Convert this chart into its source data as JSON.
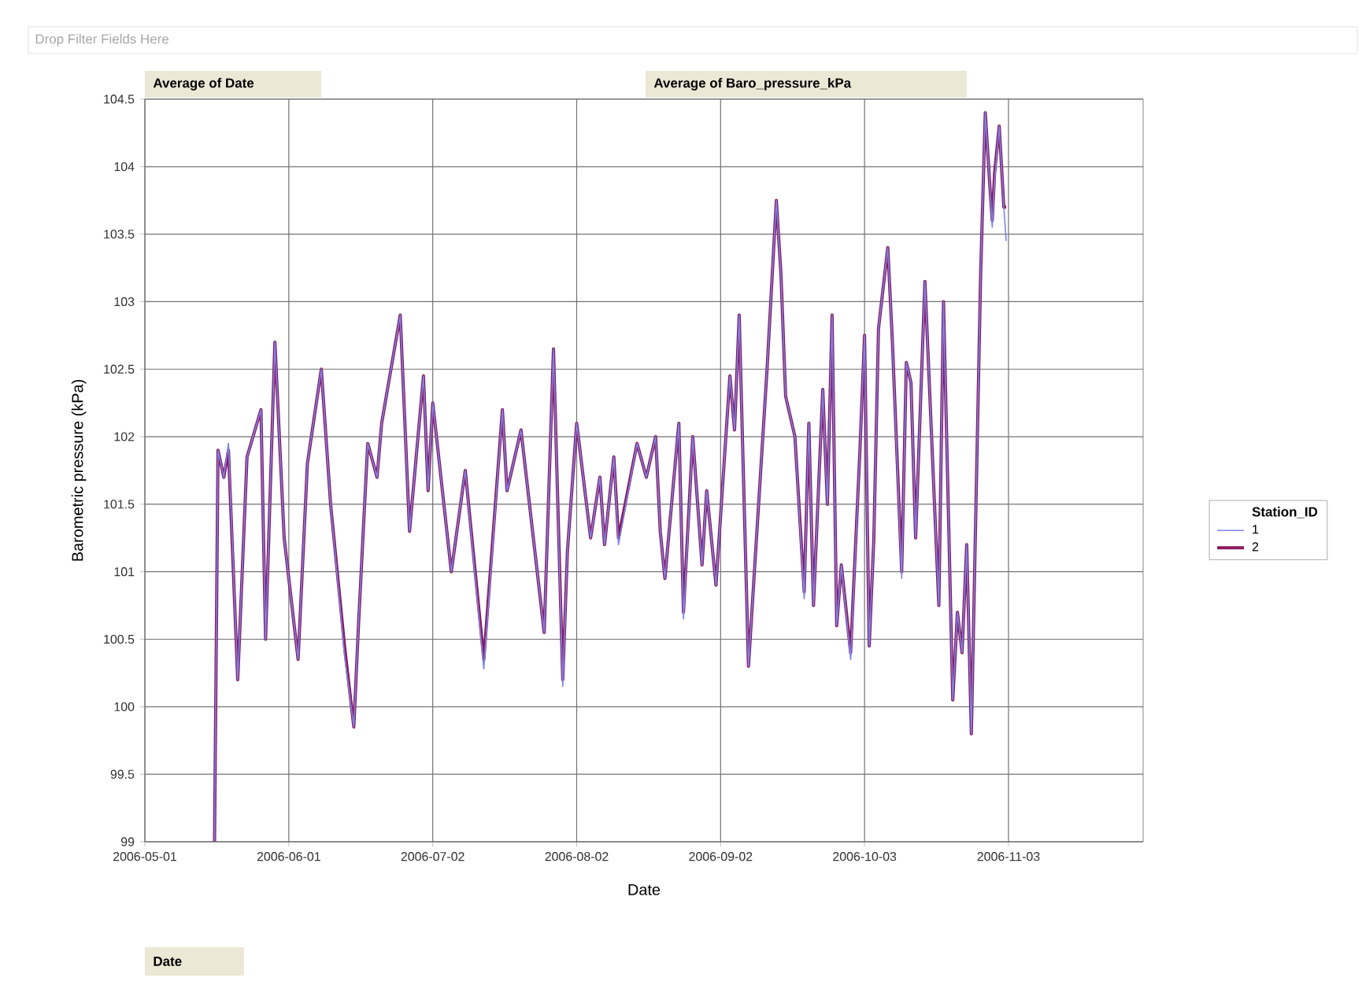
{
  "chart_data": {
    "type": "line",
    "xlabel": "Date",
    "ylabel": "Barometric pressure (kPa)",
    "legend_title": "Station_ID",
    "annotations": [
      "Drop Filter Fields Here",
      "Average of Date",
      "Average of Baro_pressure_kPa",
      "Date"
    ],
    "x": [
      "2006-05-16",
      "2006-05-16T18:00",
      "2006-05-18",
      "2006-05-19",
      "2006-05-21",
      "2006-05-23",
      "2006-05-26",
      "2006-05-27",
      "2006-05-29",
      "2006-05-31",
      "2006-06-03",
      "2006-06-05",
      "2006-06-08",
      "2006-06-10",
      "2006-06-13",
      "2006-06-15",
      "2006-06-16",
      "2006-06-18",
      "2006-06-20",
      "2006-06-21",
      "2006-06-25",
      "2006-06-27",
      "2006-06-30",
      "2006-07-01",
      "2006-07-02",
      "2006-07-06",
      "2006-07-09",
      "2006-07-13",
      "2006-07-17",
      "2006-07-18",
      "2006-07-21",
      "2006-07-26",
      "2006-07-28",
      "2006-07-30",
      "2006-07-31",
      "2006-08-02",
      "2006-08-05",
      "2006-08-07",
      "2006-08-08",
      "2006-08-10",
      "2006-08-11",
      "2006-08-15",
      "2006-08-17",
      "2006-08-19",
      "2006-08-20",
      "2006-08-21",
      "2006-08-24",
      "2006-08-25",
      "2006-08-27",
      "2006-08-29",
      "2006-08-30",
      "2006-09-01",
      "2006-09-04",
      "2006-09-05",
      "2006-09-06",
      "2006-09-08",
      "2006-09-12",
      "2006-09-14",
      "2006-09-15",
      "2006-09-16",
      "2006-09-18",
      "2006-09-20",
      "2006-09-21",
      "2006-09-22",
      "2006-09-24",
      "2006-09-25",
      "2006-09-26",
      "2006-09-27",
      "2006-09-28",
      "2006-09-30",
      "2006-10-02",
      "2006-10-03",
      "2006-10-04",
      "2006-10-05",
      "2006-10-06",
      "2006-10-08",
      "2006-10-09",
      "2006-10-11",
      "2006-10-12",
      "2006-10-13",
      "2006-10-14",
      "2006-10-16",
      "2006-10-19",
      "2006-10-20",
      "2006-10-22",
      "2006-10-23",
      "2006-10-24",
      "2006-10-25",
      "2006-10-26",
      "2006-10-28",
      "2006-10-29",
      "2006-10-30",
      "2006-10-30T12:00",
      "2006-10-31",
      "2006-11-01",
      "2006-11-02",
      "2006-11-02T12:00"
    ],
    "series": [
      {
        "name": "1",
        "color": "#7b83eb",
        "values": [
          99.0,
          101.9,
          101.7,
          101.95,
          100.2,
          101.85,
          102.2,
          100.5,
          102.7,
          101.25,
          100.35,
          101.8,
          102.5,
          101.5,
          100.38,
          99.85,
          100.6,
          101.95,
          101.7,
          102.1,
          102.9,
          101.3,
          102.45,
          101.6,
          102.25,
          101.0,
          101.75,
          100.28,
          102.2,
          101.6,
          102.05,
          100.55,
          102.65,
          100.15,
          101.15,
          102.1,
          101.25,
          101.7,
          101.2,
          101.85,
          101.2,
          101.95,
          101.7,
          102.0,
          101.3,
          100.95,
          102.1,
          100.65,
          102.0,
          101.05,
          101.6,
          100.9,
          102.45,
          102.05,
          102.9,
          100.3,
          102.5,
          103.75,
          103.2,
          102.3,
          102.0,
          100.8,
          102.1,
          100.75,
          102.35,
          101.5,
          102.9,
          100.6,
          101.05,
          100.35,
          101.9,
          102.75,
          100.45,
          101.25,
          102.8,
          103.4,
          102.7,
          100.95,
          102.55,
          102.4,
          101.25,
          103.15,
          100.75,
          103.0,
          100.05,
          100.7,
          100.4,
          101.2,
          99.8,
          103.2,
          104.4,
          103.85,
          103.55,
          103.9,
          104.3,
          103.7,
          103.45
        ]
      },
      {
        "name": "2",
        "color": "#8b1a5b",
        "values": [
          99.0,
          101.9,
          101.7,
          101.9,
          100.2,
          101.85,
          102.2,
          100.5,
          102.7,
          101.25,
          100.35,
          101.8,
          102.5,
          101.5,
          100.45,
          99.85,
          100.6,
          101.95,
          101.7,
          102.1,
          102.9,
          101.3,
          102.45,
          101.6,
          102.25,
          101.0,
          101.75,
          100.35,
          102.2,
          101.6,
          102.05,
          100.55,
          102.65,
          100.2,
          101.15,
          102.1,
          101.25,
          101.7,
          101.2,
          101.85,
          101.25,
          101.95,
          101.7,
          102.0,
          101.3,
          100.95,
          102.1,
          100.7,
          102.0,
          101.05,
          101.6,
          100.9,
          102.45,
          102.05,
          102.9,
          100.3,
          102.5,
          103.75,
          103.2,
          102.3,
          102.0,
          100.85,
          102.1,
          100.75,
          102.35,
          101.5,
          102.9,
          100.6,
          101.05,
          100.4,
          101.9,
          102.75,
          100.45,
          101.25,
          102.8,
          103.4,
          102.7,
          101.0,
          102.55,
          102.4,
          101.25,
          103.15,
          100.75,
          103.0,
          100.05,
          100.7,
          100.4,
          101.2,
          99.8,
          103.2,
          104.4,
          103.85,
          103.6,
          103.95,
          104.3,
          103.7,
          103.7
        ]
      }
    ],
    "xlim": [
      "2006-05-01",
      "2006-12-02"
    ],
    "xticks": [
      "2006-05-01",
      "2006-06-01",
      "2006-07-02",
      "2006-08-02",
      "2006-09-02",
      "2006-10-03",
      "2006-11-03"
    ],
    "ylim": [
      99,
      104.5
    ],
    "yticks": [
      99,
      99.5,
      100,
      100.5,
      101,
      101.5,
      102,
      102.5,
      103,
      103.5,
      104,
      104.5
    ],
    "grid": true,
    "legend": "right"
  }
}
